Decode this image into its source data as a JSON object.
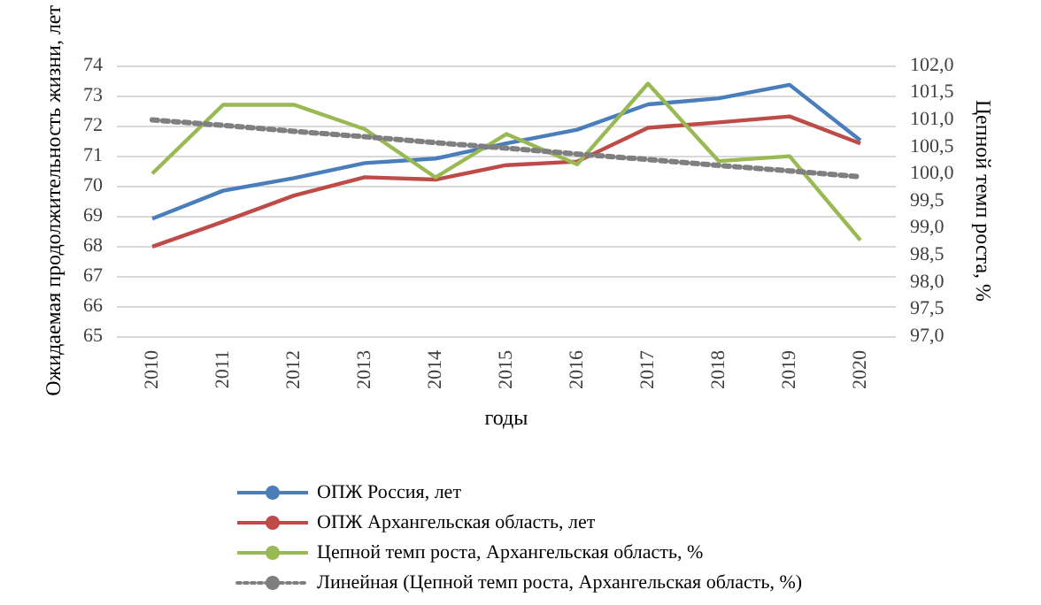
{
  "chart_data": {
    "type": "line",
    "xlabel": "годы",
    "ylabel": "Ожидаемая продолжительность жизни, лет",
    "y2label": "Цепной темп роста, %",
    "categories": [
      "2010",
      "2011",
      "2012",
      "2013",
      "2014",
      "2015",
      "2016",
      "2017",
      "2018",
      "2019",
      "2020"
    ],
    "series": [
      {
        "name": "ОПЖ Россия, лет",
        "color": "#4a7ebb",
        "values": [
          68.9,
          69.83,
          70.25,
          70.75,
          70.9,
          71.4,
          71.86,
          72.7,
          72.9,
          73.35,
          71.5
        ]
      },
      {
        "name": "ОПЖ Архангельская область, лет",
        "color": "#be4b48",
        "values": [
          67.97,
          68.8,
          69.67,
          70.28,
          70.2,
          70.68,
          70.8,
          71.92,
          72.1,
          72.3,
          71.4
        ]
      },
      {
        "name": "Цепной темп роста, Архангельская область, %",
        "color": "#98b954",
        "axis": "y2",
        "values": [
          100.0,
          101.27,
          101.27,
          100.82,
          99.93,
          100.73,
          100.17,
          101.66,
          100.23,
          100.32,
          98.77
        ]
      },
      {
        "name": "Линейная (Цепной темп роста, Архангельская область, %)",
        "color": "#7f7f7f",
        "axis": "y2",
        "line_style": "dotted",
        "values": [
          100.99,
          100.89,
          100.78,
          100.68,
          100.57,
          100.47,
          100.36,
          100.26,
          100.15,
          100.05,
          99.94
        ]
      }
    ],
    "ylim": [
      65,
      74
    ],
    "yticks": [
      65,
      66,
      67,
      68,
      69,
      70,
      71,
      72,
      73,
      74
    ],
    "y2lim": [
      97,
      102
    ],
    "y2ticks": [
      {
        "value": 97,
        "label": "97,0"
      },
      {
        "value": 97.5,
        "label": "97,5"
      },
      {
        "value": 98,
        "label": "98,0"
      },
      {
        "value": 98.5,
        "label": "98,5"
      },
      {
        "value": 99,
        "label": "99,0"
      },
      {
        "value": 99.5,
        "label": "99,5"
      },
      {
        "value": 100,
        "label": "100,0"
      },
      {
        "value": 100.5,
        "label": "100,5"
      },
      {
        "value": 101,
        "label": "101,0"
      },
      {
        "value": 101.5,
        "label": "101,5"
      },
      {
        "value": 102,
        "label": "102,0"
      }
    ],
    "grid": "y",
    "legend": "bottom",
    "marker": "none",
    "line_style": "solid"
  }
}
